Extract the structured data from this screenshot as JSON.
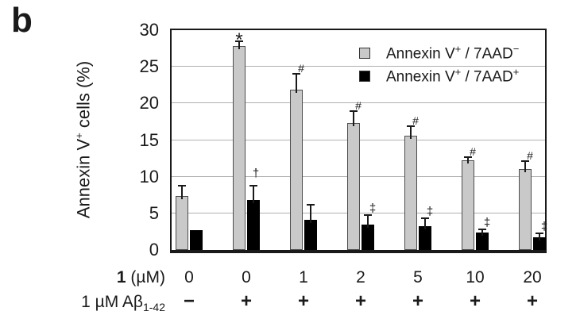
{
  "panel_label": "b",
  "y_axis": {
    "title_pre": "Annexin V",
    "title_sup": "+",
    "title_post": " cells (%)",
    "ticks": [
      "0",
      "5",
      "10",
      "15",
      "20",
      "25",
      "30"
    ]
  },
  "legend": {
    "items": [
      {
        "pre": "Annexin V",
        "sup1": "+",
        "mid": " / 7AAD",
        "sup2": "−",
        "swatch": "#c9c9c9"
      },
      {
        "pre": "Annexin V",
        "sup1": "+",
        "mid": " / 7AAD",
        "sup2": "+",
        "swatch": "#000000"
      }
    ]
  },
  "x_axis": {
    "row1_label_bold": "1",
    "row1_label_rest": " (µM)",
    "row2_label_pre": "1 µM Aβ",
    "row2_label_sub": "1-42"
  },
  "chart_data": {
    "type": "bar",
    "title": "",
    "ylabel": "Annexin V+ cells (%)",
    "ylim": [
      0,
      30
    ],
    "ytick_step": 5,
    "grid": true,
    "legend_position": "upper right",
    "categories_compound_1_uM": [
      "0",
      "0",
      "1",
      "2",
      "5",
      "10",
      "20"
    ],
    "categories_abeta_1uM_1_42": [
      "−",
      "+",
      "+",
      "+",
      "+",
      "+",
      "+"
    ],
    "series": [
      {
        "name": "Annexin V+ / 7AAD−",
        "color": "#c9c9c9",
        "values": [
          7.4,
          27.8,
          21.9,
          17.3,
          15.6,
          12.2,
          11.0
        ],
        "errors": [
          1.5,
          0.8,
          2.2,
          1.8,
          1.4,
          0.6,
          1.2
        ],
        "sig_symbols": [
          null,
          "*",
          "#",
          "#",
          "#",
          "#",
          "#"
        ]
      },
      {
        "name": "Annexin V+ / 7AAD+",
        "color": "#000000",
        "values": [
          2.7,
          6.8,
          4.1,
          3.5,
          3.2,
          2.4,
          1.7
        ],
        "errors": [
          0,
          2.1,
          2.2,
          1.4,
          1.2,
          0.5,
          0.7
        ],
        "sig_symbols": [
          null,
          "†",
          null,
          "‡",
          "‡",
          "‡",
          "‡"
        ]
      }
    ]
  },
  "colors": {
    "bar_gray": "#c9c9c9",
    "bar_black": "#000000",
    "gridline": "#b0b0b0",
    "frame": "#1a1a1a"
  }
}
